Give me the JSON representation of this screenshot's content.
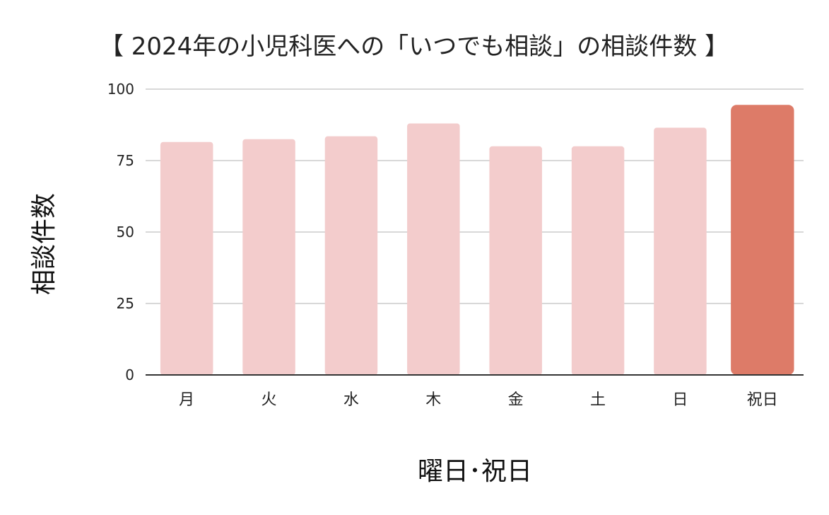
{
  "chart_data": {
    "type": "bar",
    "title": "【 2024年の小児科医への「いつでも相談」の相談件数 】",
    "xlabel": "曜日･祝日",
    "ylabel": "相談件数",
    "categories": [
      "月",
      "火",
      "水",
      "木",
      "金",
      "土",
      "日",
      "祝日"
    ],
    "values": [
      81.5,
      82.5,
      83.5,
      88,
      80,
      80,
      86.5,
      94.5
    ],
    "ylim": [
      0,
      100
    ],
    "yticks": [
      0,
      25,
      50,
      75,
      100
    ],
    "grid": true,
    "legend": "none",
    "colors": {
      "bar": "#f3cccc",
      "highlight_bar": "#dd7b68"
    },
    "highlight_category": "祝日"
  }
}
